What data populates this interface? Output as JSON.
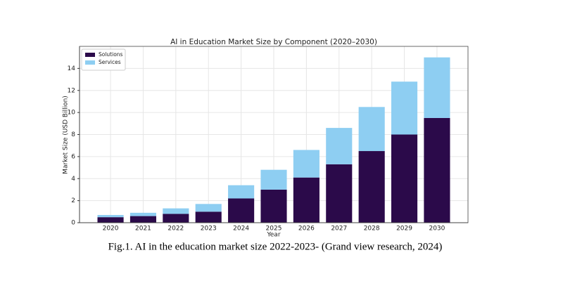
{
  "chart_data": {
    "type": "stacked-bar",
    "title": "AI in Education Market Size by Component (2020–2030)",
    "x_label": "Year",
    "y_label": "Market Size (USD Billion)",
    "categories": [
      "2020",
      "2021",
      "2022",
      "2023",
      "2024",
      "2025",
      "2026",
      "2027",
      "2028",
      "2029",
      "2030"
    ],
    "series": [
      {
        "name": "Solutions",
        "color": "#2b0a4a",
        "values": [
          0.5,
          0.6,
          0.8,
          1.0,
          2.2,
          3.0,
          4.1,
          5.3,
          6.5,
          8.0,
          9.5
        ]
      },
      {
        "name": "Services",
        "color": "#8ecef2",
        "values": [
          0.2,
          0.3,
          0.5,
          0.7,
          1.2,
          1.8,
          2.5,
          3.3,
          4.0,
          4.8,
          5.5
        ]
      }
    ],
    "ylim": [
      0,
      16
    ],
    "yticks": [
      0,
      2,
      4,
      6,
      8,
      10,
      12,
      14
    ],
    "grid": true,
    "legend": "upper-left"
  },
  "caption": "Fig.1. AI in the education market size 2022-2023- (Grand view research, 2024)"
}
